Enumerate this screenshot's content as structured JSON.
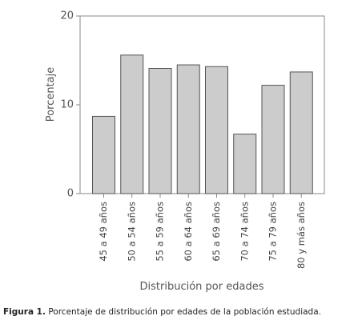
{
  "chart_data": {
    "type": "bar",
    "categories": [
      "45 a 49 años",
      "50 a 54 años",
      "55 a 59 años",
      "60 a 64 años",
      "65 a 69 años",
      "70 a 74 años",
      "75 a 79 años",
      "80 y más años"
    ],
    "values": [
      8.7,
      15.6,
      14.1,
      14.5,
      14.3,
      6.7,
      12.2,
      13.7
    ],
    "xlabel": "Distribución por edades",
    "ylabel": "Porcentaje",
    "ylim": [
      0,
      20
    ],
    "yticks": [
      0,
      10,
      20
    ],
    "grid": false,
    "bar_color": "#cccccc",
    "bar_edge_color": "#555555"
  },
  "caption": {
    "label": "Figura 1.",
    "text": " Porcentaje de distribución por edades de la población estudiada."
  }
}
